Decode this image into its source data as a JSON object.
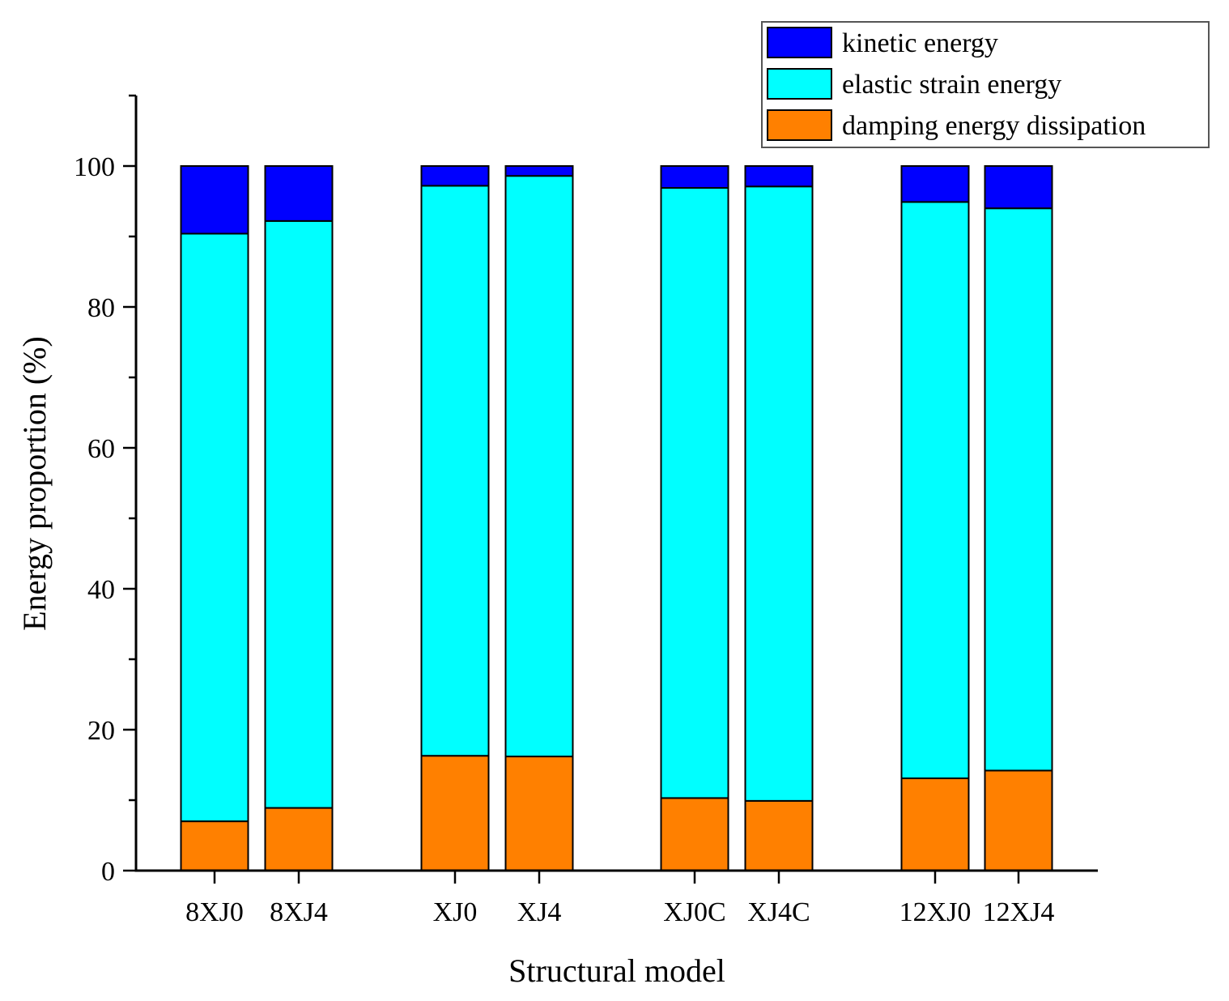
{
  "chart_data": {
    "type": "bar",
    "stacked": true,
    "title": "",
    "xlabel": "Structural model",
    "ylabel": "Energy proportion (%)",
    "ylim": [
      0,
      110
    ],
    "yticks": [
      0,
      20,
      40,
      60,
      80,
      100
    ],
    "grid": false,
    "legend_position": "top-right",
    "categories": [
      "8XJ0",
      "8XJ4",
      "XJ0",
      "XJ4",
      "XJ0C",
      "XJ4C",
      "12XJ0",
      "12XJ4"
    ],
    "series": [
      {
        "name": "damping energy dissipation",
        "color": "#ff8000",
        "values": [
          7.0,
          8.9,
          16.3,
          16.2,
          10.3,
          9.9,
          13.1,
          14.2
        ]
      },
      {
        "name": "elastic strain energy",
        "color": "#00ffff",
        "values": [
          83.4,
          83.3,
          80.9,
          82.4,
          86.6,
          87.2,
          81.8,
          79.8
        ]
      },
      {
        "name": "kinetic energy",
        "color": "#0000ff",
        "values": [
          9.6,
          7.8,
          2.8,
          1.4,
          3.1,
          2.9,
          5.1,
          6.0
        ]
      }
    ],
    "legend_order": [
      "kinetic energy",
      "elastic strain energy",
      "damping energy dissipation"
    ],
    "legend_labels": [
      " kinetic energy",
      "elastic strain energy",
      "damping energy dissipation"
    ]
  }
}
